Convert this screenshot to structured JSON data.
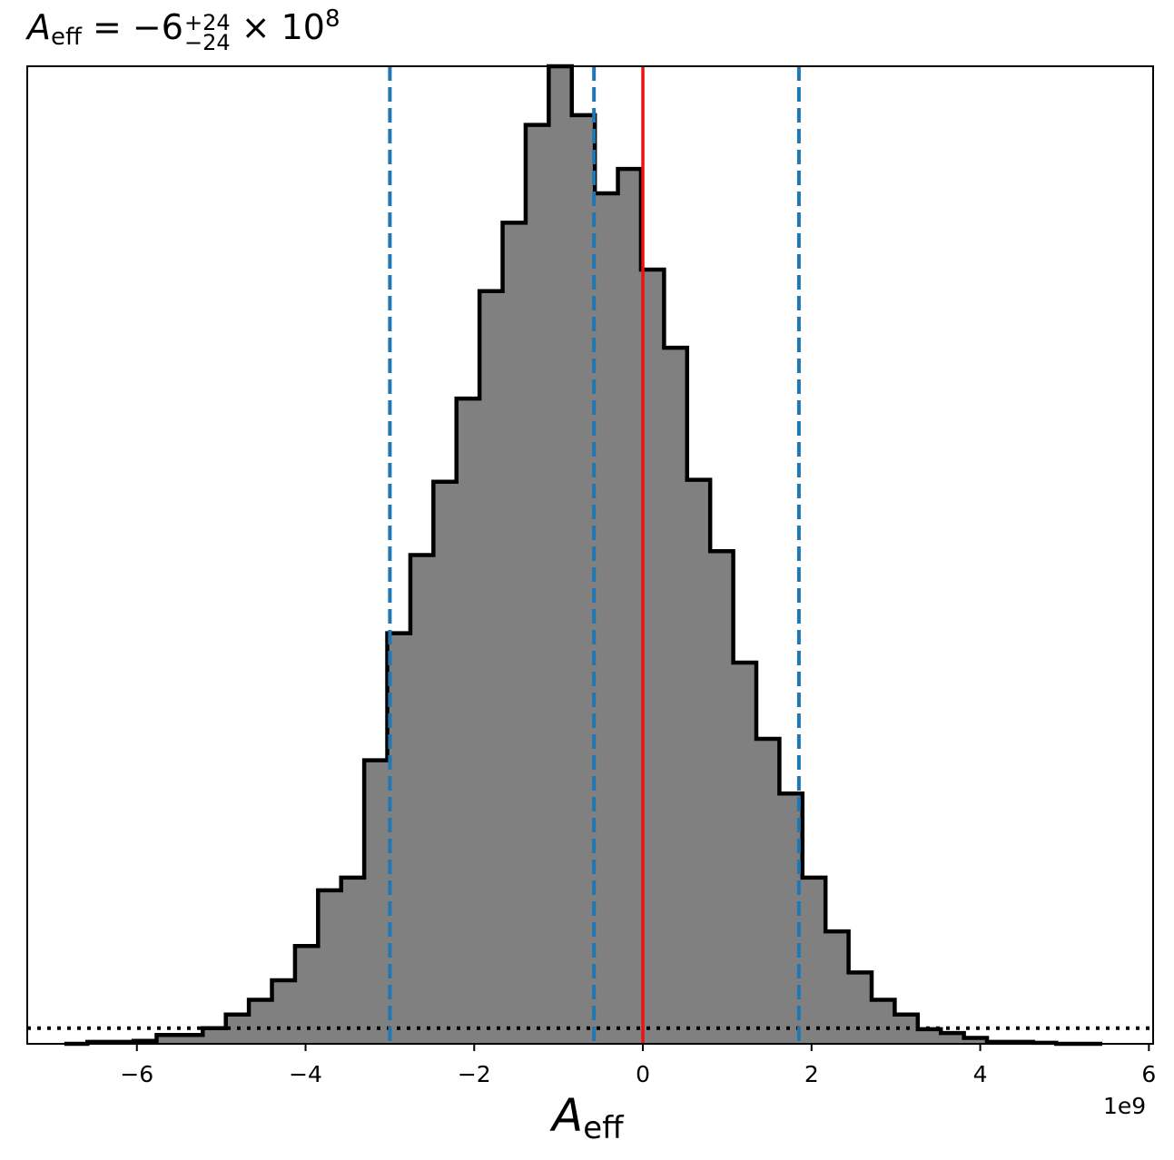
{
  "chart_data": {
    "type": "histogram",
    "title": {
      "symbol": "A",
      "subscript": "eff",
      "median": "= −6",
      "upper": "+24",
      "lower": "−24",
      "multiplier": "× 10",
      "exponent": "8"
    },
    "xlabel": {
      "symbol": "A",
      "subscript": "eff"
    },
    "x_offset_label": "1e9",
    "xlim": [
      -7.3,
      6.05
    ],
    "ylim": [
      0,
      1
    ],
    "x_ticks": [
      -6,
      -4,
      -2,
      0,
      2,
      4,
      6
    ],
    "x_tick_labels": [
      "−6",
      "−4",
      "−2",
      "0",
      "2",
      "4",
      "6"
    ],
    "y_ticks_shown": false,
    "grid": false,
    "bins": {
      "start": -6.86,
      "width": 0.2735,
      "counts": [
        0.0,
        0.002,
        0.002,
        0.003,
        0.009,
        0.009,
        0.016,
        0.03,
        0.045,
        0.065,
        0.1,
        0.157,
        0.17,
        0.29,
        0.42,
        0.5,
        0.575,
        0.66,
        0.77,
        0.84,
        0.94,
        1.0,
        0.95,
        0.87,
        0.895,
        0.792,
        0.712,
        0.577,
        0.504,
        0.39,
        0.312,
        0.256,
        0.17,
        0.115,
        0.073,
        0.045,
        0.03,
        0.015,
        0.011,
        0.006,
        0.002,
        0.002,
        0.001,
        0.0,
        0.0
      ]
    },
    "vertical_lines": [
      {
        "x": -3.0,
        "style": "dashed",
        "color": "#1f77b4"
      },
      {
        "x": -0.58,
        "style": "dashed",
        "color": "#1f77b4"
      },
      {
        "x": 1.85,
        "style": "dashed",
        "color": "#1f77b4"
      },
      {
        "x": 0.0,
        "style": "solid",
        "color": "#ee1111"
      }
    ],
    "horizontal_lines": [
      {
        "y": 0.016,
        "style": "dotted",
        "color": "#000000"
      }
    ],
    "colors": {
      "fill": "#808080",
      "edge": "#000000"
    }
  }
}
